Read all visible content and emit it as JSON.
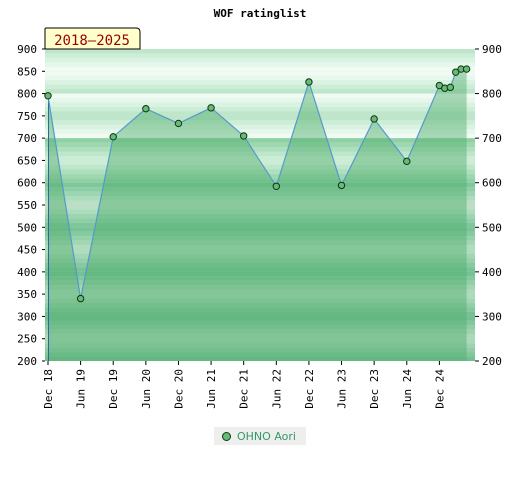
{
  "chart_data": {
    "type": "line",
    "title": "WOF ratinglist",
    "badge": "2018–2025",
    "ylim": [
      200,
      900
    ],
    "y_ticks": [
      200,
      250,
      300,
      350,
      400,
      450,
      500,
      550,
      600,
      650,
      700,
      750,
      800,
      850,
      900
    ],
    "y_ticks_right": [
      200,
      300,
      400,
      500,
      600,
      700,
      800,
      900
    ],
    "x_range": [
      0,
      26
    ],
    "x_ticks": [
      {
        "label": "Dec 18",
        "x": 0
      },
      {
        "label": "Jun 19",
        "x": 2
      },
      {
        "label": "Dec 19",
        "x": 4
      },
      {
        "label": "Jun 20",
        "x": 6
      },
      {
        "label": "Dec 20",
        "x": 8
      },
      {
        "label": "Jun 21",
        "x": 10
      },
      {
        "label": "Dec 21",
        "x": 12
      },
      {
        "label": "Jun 22",
        "x": 14
      },
      {
        "label": "Dec 22",
        "x": 16
      },
      {
        "label": "Jun 23",
        "x": 18
      },
      {
        "label": "Dec 23",
        "x": 20
      },
      {
        "label": "Jun 24",
        "x": 22
      },
      {
        "label": "Dec 24",
        "x": 24
      }
    ],
    "series": [
      {
        "name": "OHNO Aori",
        "color": "#66bb77",
        "line_color": "#5599cc",
        "points": [
          {
            "x": 0,
            "y": 795
          },
          {
            "x": 2,
            "y": 340
          },
          {
            "x": 4,
            "y": 703
          },
          {
            "x": 6,
            "y": 766
          },
          {
            "x": 8,
            "y": 733
          },
          {
            "x": 10,
            "y": 768
          },
          {
            "x": 12,
            "y": 705
          },
          {
            "x": 14,
            "y": 592
          },
          {
            "x": 16,
            "y": 826
          },
          {
            "x": 18,
            "y": 594
          },
          {
            "x": 20,
            "y": 743
          },
          {
            "x": 22,
            "y": 648
          },
          {
            "x": 24,
            "y": 818
          },
          {
            "x": 24.33,
            "y": 812
          },
          {
            "x": 24.67,
            "y": 814
          },
          {
            "x": 25,
            "y": 848
          },
          {
            "x": 25.33,
            "y": 855
          },
          {
            "x": 25.67,
            "y": 855
          }
        ]
      }
    ],
    "legend_position": "bottom"
  }
}
